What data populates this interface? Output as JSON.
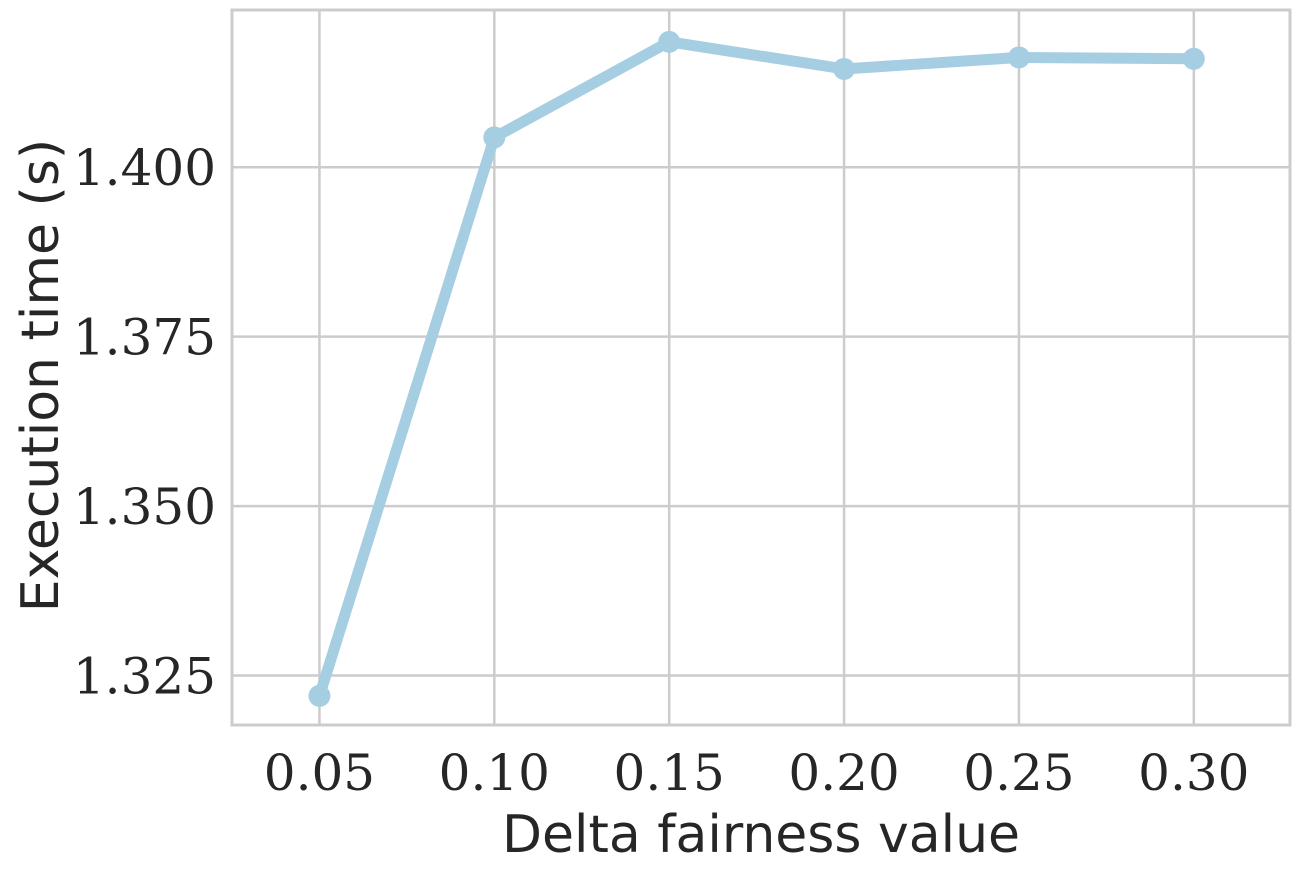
{
  "chart_data": {
    "type": "line",
    "title": "",
    "xlabel": "Delta fairness value",
    "ylabel": "Execution time (s)",
    "x": [
      0.05,
      0.1,
      0.15,
      0.2,
      0.25,
      0.3
    ],
    "x_tick_labels": [
      "0.05",
      "0.10",
      "0.15",
      "0.20",
      "0.25",
      "0.30"
    ],
    "y_ticks": [
      1.325,
      1.35,
      1.375,
      1.4
    ],
    "y_tick_labels": [
      "1.325",
      "1.350",
      "1.375",
      "1.400"
    ],
    "series": [
      {
        "values": [
          1.322,
          1.4044,
          1.4185,
          1.4145,
          1.4162,
          1.416
        ],
        "color": "#a6cee3"
      }
    ],
    "xlim": [
      0.025,
      0.3275
    ],
    "ylim": [
      1.3177,
      1.4232
    ],
    "grid": true,
    "markers": true
  }
}
